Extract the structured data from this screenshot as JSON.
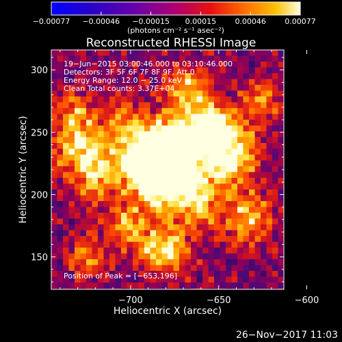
{
  "chart_data": {
    "type": "heatmap",
    "title": "Reconstructed RHESSI Image",
    "xlabel": "Heliocentric X (arcsec)",
    "ylabel": "Heliocentric Y (arcsec)",
    "xlim": [
      -745,
      -613
    ],
    "ylim": [
      124,
      316
    ],
    "x_ticks": [
      {
        "value": -700,
        "label": "−700"
      },
      {
        "value": -650,
        "label": "−650"
      },
      {
        "value": -600,
        "label": "−600"
      }
    ],
    "y_ticks": [
      {
        "value": 150,
        "label": "150"
      },
      {
        "value": 200,
        "label": "200"
      },
      {
        "value": 250,
        "label": "250"
      },
      {
        "value": 300,
        "label": "300"
      }
    ],
    "colorbar": {
      "unit_label": "(photons cm⁻² s⁻¹ asec⁻²)",
      "range": [
        -0.00077,
        0.00077
      ],
      "tick_labels": [
        "−0.00077",
        "−0.00046",
        "−0.00015",
        "0.00015",
        "0.00046",
        "0.00077"
      ]
    },
    "annotations": {
      "time_range": "19−Jun−2015 03:00:46.000 to 03:10:46.000",
      "detectors": "Detectors: 3F 5F 6F 7F 8F 9F, Att 0",
      "energy_range": "Energy Range: 12.0 − 25.0 keV",
      "clean_counts": "Clean    Total counts: 3.37E+04",
      "peak_position": "Position of Peak = [−653,196]"
    },
    "peak": {
      "x": -653,
      "y": 196
    },
    "grid": false,
    "legend": "none"
  },
  "footer": {
    "date": "26−Nov−2017 11:03"
  }
}
